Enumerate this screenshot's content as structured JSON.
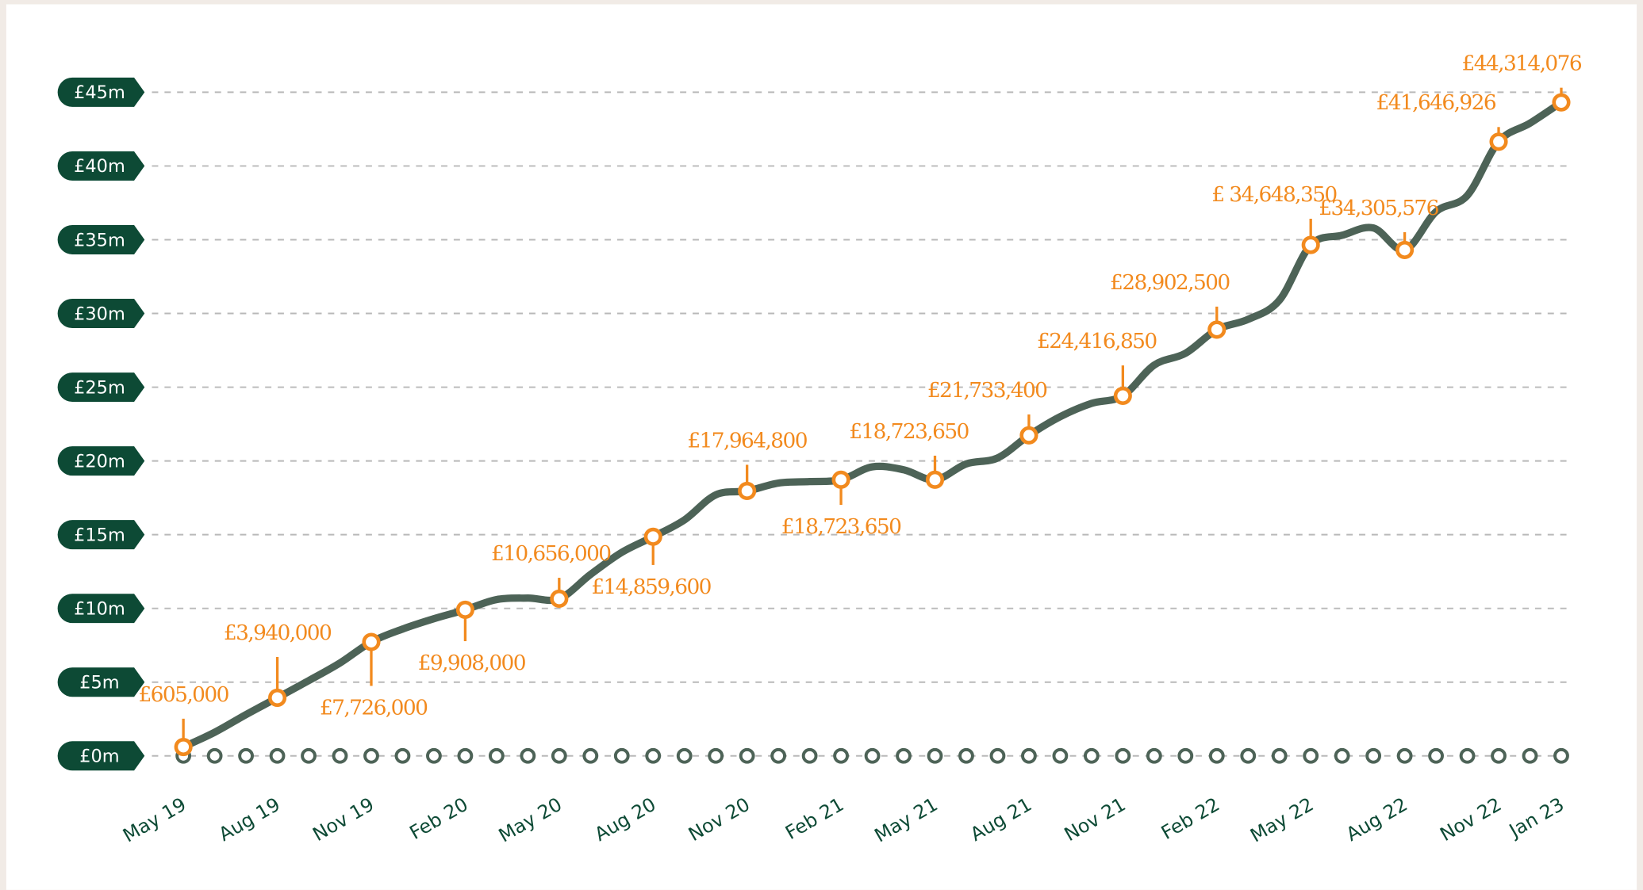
{
  "chart_data": {
    "type": "line",
    "categories": [
      "May 19",
      null,
      null,
      "Aug 19",
      null,
      null,
      "Nov 19",
      null,
      null,
      "Feb 20",
      null,
      null,
      "May 20",
      null,
      null,
      "Aug 20",
      null,
      null,
      "Nov 20",
      null,
      null,
      "Feb 21",
      null,
      null,
      "May 21",
      null,
      null,
      "Aug 21",
      null,
      null,
      "Nov 21",
      null,
      null,
      "Feb 22",
      null,
      null,
      "May 22",
      null,
      null,
      "Aug 22",
      null,
      null,
      "Nov 22",
      null,
      "Jan 23"
    ],
    "series": [
      {
        "color": "#4d6357",
        "marker_color": "#f28a1e",
        "values": [
          0.605,
          1.6,
          2.8,
          3.94,
          5.1,
          6.3,
          7.726,
          8.6,
          9.3,
          9.908,
          10.6,
          10.7,
          10.656,
          12.3,
          13.8,
          14.8596,
          16.0,
          17.7,
          17.9648,
          18.5,
          18.6,
          18.72365,
          19.6,
          19.4,
          18.72365,
          19.8,
          20.2,
          21.7334,
          23.0,
          23.9,
          24.41685,
          26.5,
          27.3,
          28.9025,
          29.6,
          30.9,
          34.64835,
          35.3,
          35.8,
          34.305576,
          36.9,
          38.0,
          41.646926,
          42.9,
          44.314076
        ],
        "value_labels": [
          "£605,000",
          null,
          null,
          "£3,940,000",
          null,
          null,
          "£7,726,000",
          null,
          null,
          "£9,908,000",
          null,
          null,
          "£10,656,000",
          null,
          null,
          "£14,859,600",
          null,
          null,
          "£17,964,800",
          null,
          null,
          "£18,723,650",
          null,
          null,
          "£18,723,650",
          null,
          null,
          "£21,733,400",
          null,
          null,
          "£24,416,850",
          null,
          null,
          "£28,902,500",
          null,
          null,
          "£ 34,648,350",
          null,
          null,
          "£34,305,576",
          null,
          null,
          "£41,646,926",
          null,
          "£44,314,076"
        ]
      }
    ],
    "ylim": [
      0,
      45
    ],
    "yticks": [
      {
        "value": 0,
        "label": "£0m"
      },
      {
        "value": 5,
        "label": "£5m"
      },
      {
        "value": 10,
        "label": "£10m"
      },
      {
        "value": 15,
        "label": "£15m"
      },
      {
        "value": 20,
        "label": "£20m"
      },
      {
        "value": 25,
        "label": "£25m"
      },
      {
        "value": 30,
        "label": "£30m"
      },
      {
        "value": 35,
        "label": "£35m"
      },
      {
        "value": 40,
        "label": "£40m"
      },
      {
        "value": 45,
        "label": "£45m"
      }
    ],
    "grid": true
  }
}
